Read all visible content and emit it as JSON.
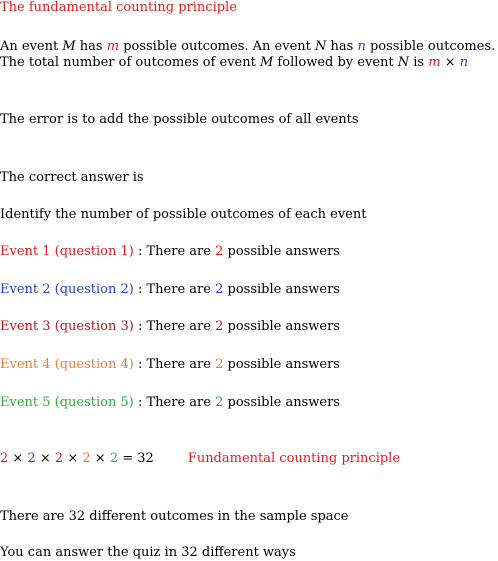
{
  "heading": "The fundamental counting principle",
  "principle": {
    "l1_a": "An event ",
    "M": "M",
    "l1_b": " has ",
    "m": "m",
    "l1_c": " possible outcomes. An event ",
    "N": "N",
    "l1_d": " has ",
    "n": "n",
    "l1_e": " possible outcomes.",
    "l2_a": "The total number of outcomes of event ",
    "l2_b": " followed by event ",
    "l2_c": " is ",
    "times": "×"
  },
  "error_text": "The error is to add the possible outcomes of all events",
  "correct_text": "The correct answer is",
  "identify_text": "Identify the number of possible outcomes of each event",
  "events": [
    {
      "label": "Event 1 (question 1)",
      "colon": " : ",
      "pre": "There are ",
      "count": "2",
      "post": " possible answers",
      "color": "#e41a1c"
    },
    {
      "label": "Event 2 (question 2)",
      "colon": " : ",
      "pre": "There are ",
      "count": "2",
      "post": " possible answers",
      "color": "#1f3fd6"
    },
    {
      "label": "Event 3 (question 3)",
      "colon": " : ",
      "pre": "There are ",
      "count": "2",
      "post": " possible answers",
      "color": "#c0141b"
    },
    {
      "label": "Event 4 (question 4)",
      "colon": " : ",
      "pre": "There are ",
      "count": "2",
      "post": " possible answers",
      "color": "#f07a3a"
    },
    {
      "label": "Event 5 (question 5)",
      "colon": " : ",
      "pre": "There are ",
      "count": "2",
      "post": " possible answers",
      "color": "#2cae3a"
    }
  ],
  "product": {
    "f1": "2",
    "f2": "2",
    "f3": "2",
    "f4": "2",
    "f5": "2",
    "times": " × ",
    "equals": " = 32",
    "label": "Fundamental counting principle"
  },
  "conclusion1": "There are 32 different outcomes in the sample space",
  "conclusion2": "You can answer the quiz in 32 different ways"
}
